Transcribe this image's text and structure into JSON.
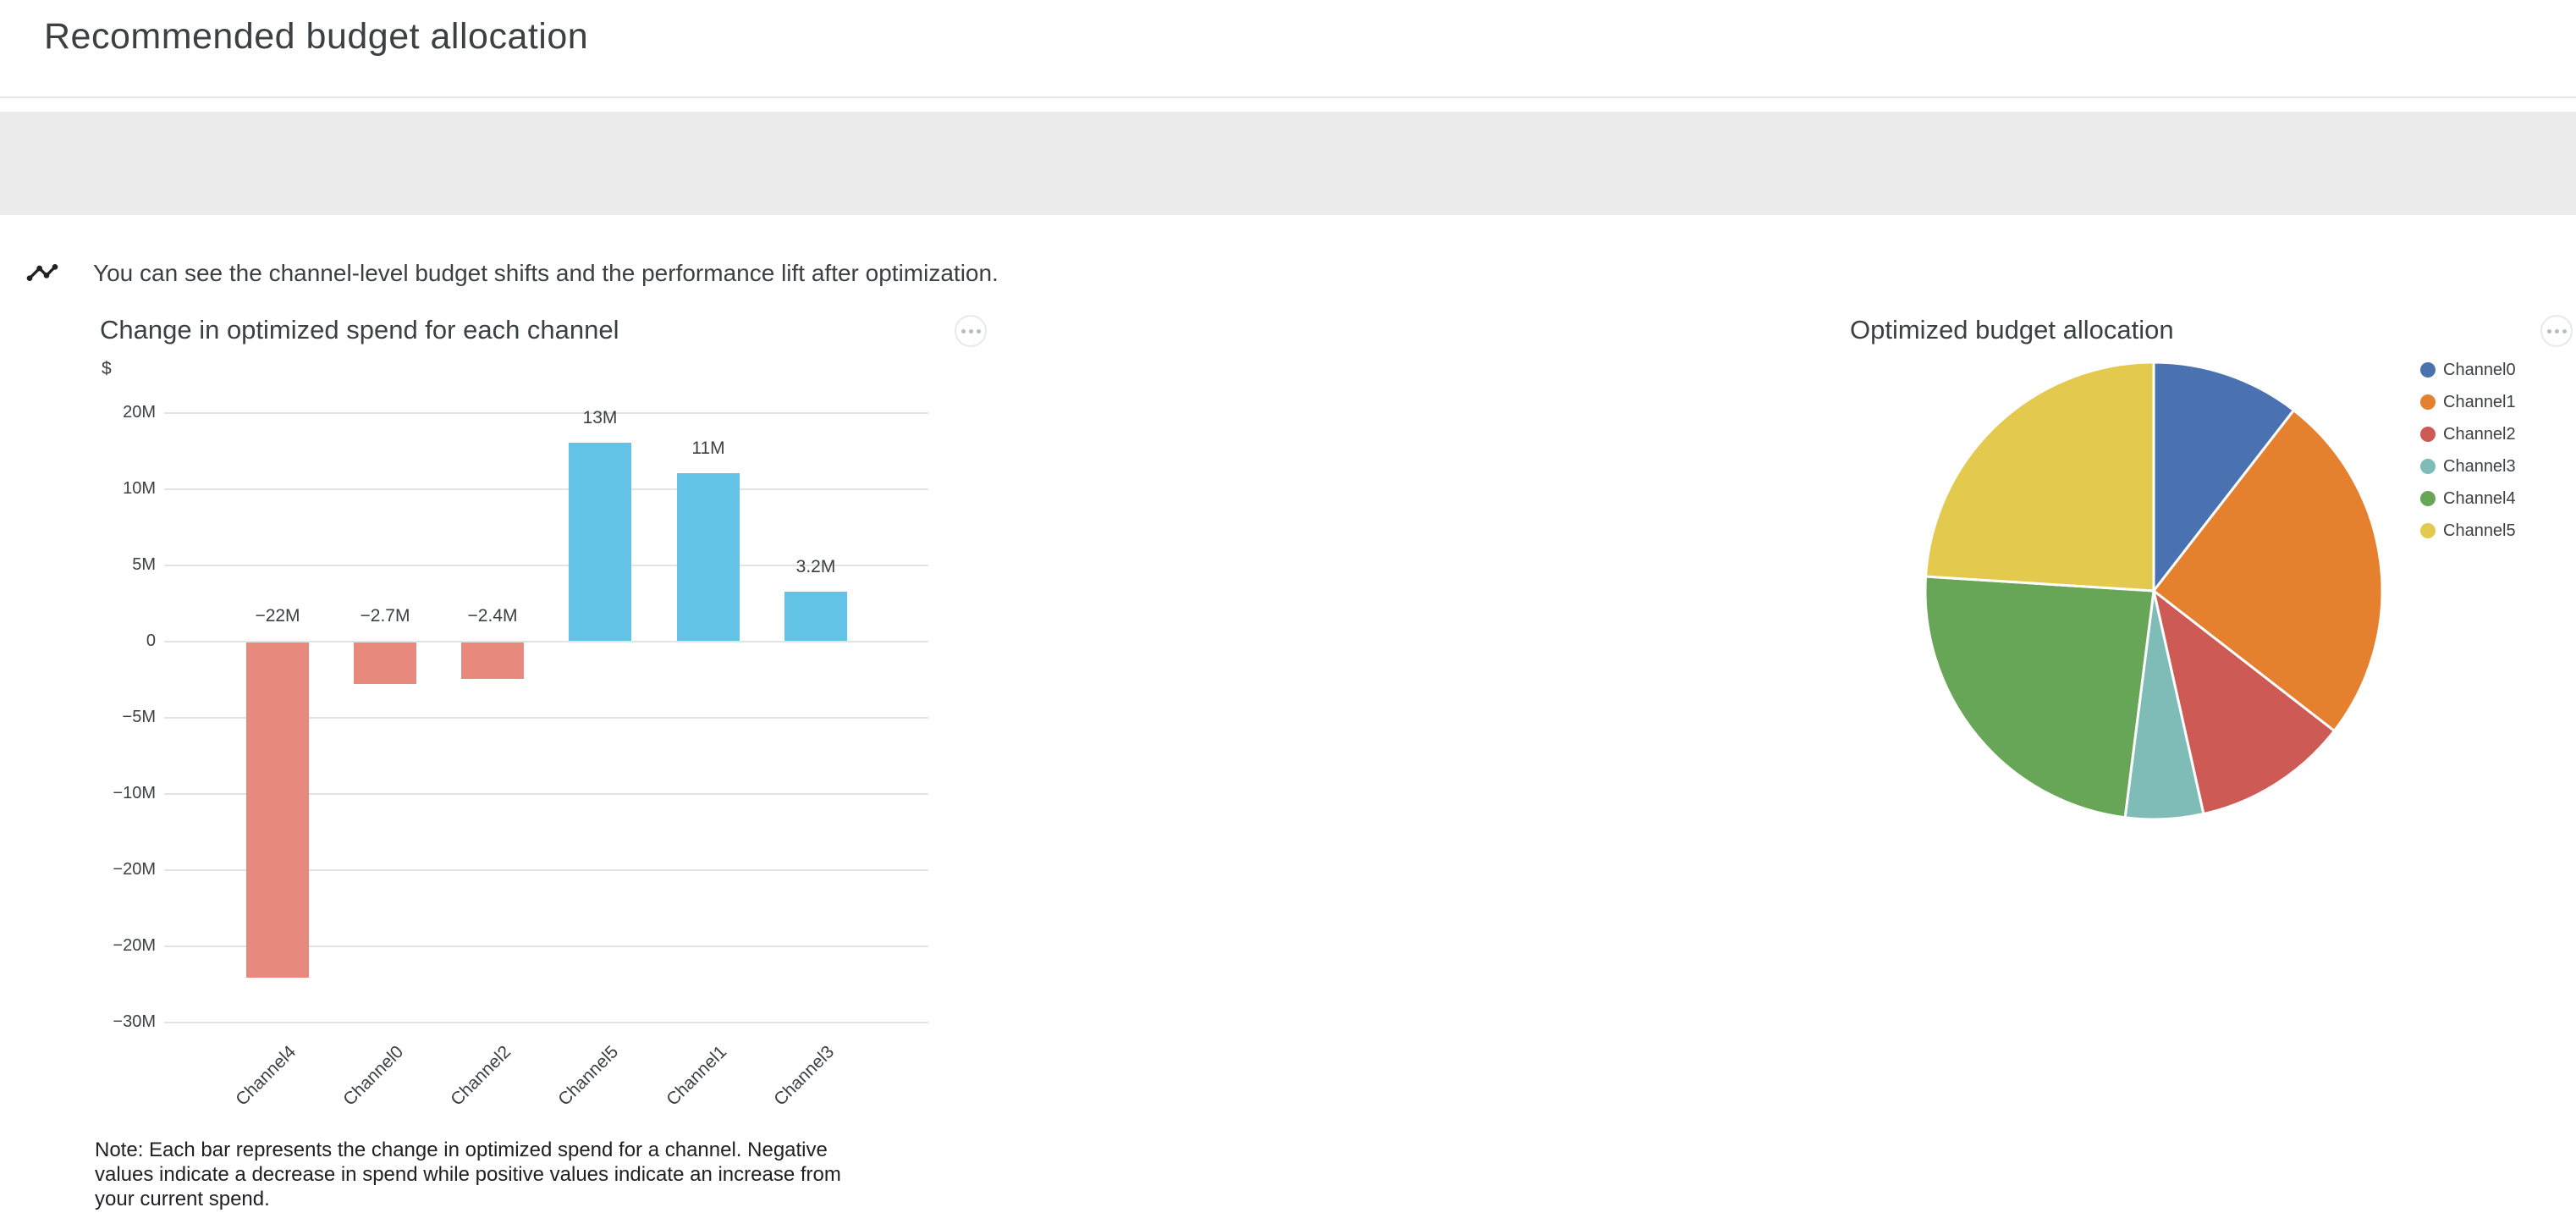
{
  "header": {
    "title": "Recommended budget allocation"
  },
  "banner": {
    "icon": "insights-icon",
    "message": "You can see the channel-level budget shifts and the performance lift after optimization."
  },
  "bar_card": {
    "title": "Change in optimized spend for each channel",
    "menu_icon": "more-options-icon",
    "note": "Note: Each bar represents the change in optimized spend for a channel. Negative values indicate a decrease in spend while positive values indicate an increase from your current spend."
  },
  "pie_card": {
    "title": "Optimized budget allocation",
    "menu_icon": "more-options-icon"
  },
  "chart_data": [
    {
      "type": "bar",
      "title": "Change in optimized spend for each channel",
      "xlabel": "",
      "ylabel": "$",
      "categories": [
        "Channel4",
        "Channel0",
        "Channel2",
        "Channel5",
        "Channel1",
        "Channel3"
      ],
      "values": [
        -22000000,
        -2700000,
        -2400000,
        13000000,
        11000000,
        3200000
      ],
      "bar_value_labels": [
        "−22M",
        "−2.7M",
        "−2.4M",
        "13M",
        "11M",
        "3.2M"
      ],
      "y_tick_labels": [
        "20M",
        "10M",
        "5M",
        "0",
        "−5M",
        "−10M",
        "−20M",
        "−20M",
        "−30M"
      ],
      "grid": true,
      "legend_position": "none",
      "colors": {
        "positive": "#62C3E7",
        "negative": "#E8897E"
      }
    },
    {
      "type": "pie",
      "title": "Optimized budget allocation",
      "legend_position": "right",
      "slices": [
        {
          "label": "Channel0",
          "share_pct": 10.5,
          "color": "#4A72B0"
        },
        {
          "label": "Channel1",
          "share_pct": 25.0,
          "color": "#E5812E"
        },
        {
          "label": "Channel2",
          "share_pct": 11.0,
          "color": "#CE5A56"
        },
        {
          "label": "Channel3",
          "share_pct": 5.5,
          "color": "#7FBCB8"
        },
        {
          "label": "Channel4",
          "share_pct": 24.0,
          "color": "#68A657"
        },
        {
          "label": "Channel5",
          "share_pct": 24.0,
          "color": "#E4C94F"
        }
      ]
    }
  ]
}
